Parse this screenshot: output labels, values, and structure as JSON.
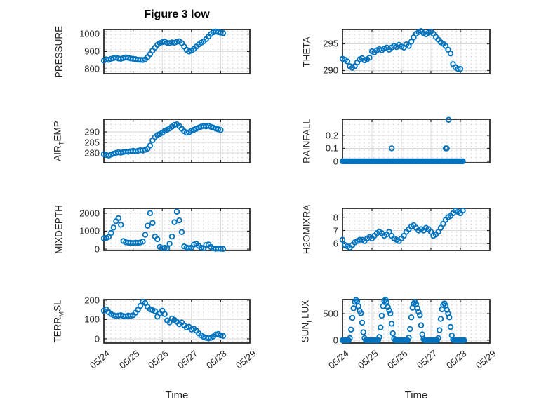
{
  "figure": {
    "title": "Figure 3 low",
    "xlabel": "Time",
    "marker_color": "#0072BD",
    "axis_color": "#262626",
    "border_color": "#1c1c1c",
    "grid_color": "#dadada",
    "minor_grid_color": "#c9c9c9",
    "background": "#ffffff",
    "xticks": [
      0,
      1,
      2,
      3,
      4,
      5
    ],
    "x_tick_labels": [
      "05/24",
      "05/25",
      "05/26",
      "05/27",
      "05/28",
      "05/29"
    ]
  },
  "chart_data": [
    {
      "type": "scatter",
      "name": "PRESSURE",
      "row": 0,
      "col": 0,
      "ylabel": {
        "pre": "PRESSURE",
        "sub": "",
        "post": ""
      },
      "yticks": [
        800,
        900,
        1000
      ],
      "ylim": [
        773,
        1026
      ],
      "xlim_days": [
        0,
        5
      ],
      "t0": 0,
      "dt": 0.0833333,
      "values": [
        848,
        855,
        852,
        858,
        862,
        865,
        860,
        858,
        862,
        866,
        864,
        860,
        858,
        856,
        853,
        852,
        851,
        855,
        868,
        885,
        905,
        922,
        938,
        948,
        953,
        956,
        950,
        948,
        952,
        950,
        955,
        958,
        948,
        928,
        910,
        900,
        905,
        915,
        928,
        940,
        950,
        958,
        970,
        985,
        1000,
        1010,
        1014,
        1011,
        1008,
        1005
      ]
    },
    {
      "type": "scatter",
      "name": "THETA",
      "row": 0,
      "col": 1,
      "ylabel": {
        "pre": "THETA",
        "sub": "",
        "post": ""
      },
      "yticks": [
        290,
        295
      ],
      "ylim": [
        289.4,
        297.7
      ],
      "xlim_days": [
        0,
        5
      ],
      "t0": 0,
      "dt": 0.0833333,
      "values": [
        292.2,
        292.0,
        291.7,
        290.8,
        290.5,
        290.8,
        291.5,
        292.1,
        292.3,
        291.9,
        292.1,
        292.4,
        293.6,
        293.4,
        293.8,
        294.0,
        293.8,
        294.1,
        294.3,
        293.9,
        294.3,
        294.6,
        294.4,
        294.8,
        294.5,
        294.3,
        294.9,
        294.6,
        295.4,
        296.2,
        296.9,
        297.2,
        297.4,
        297.0,
        296.8,
        297.1,
        297.3,
        296.9,
        296.3,
        295.8,
        295.3,
        295.0,
        294.6,
        293.9,
        293.2,
        291.2,
        290.6,
        290.3,
        290.3
      ]
    },
    {
      "type": "scatter",
      "name": "AIR_TEMP",
      "row": 1,
      "col": 0,
      "ylabel": {
        "pre": "AIR",
        "sub": "T",
        "post": "EMP"
      },
      "yticks": [
        280,
        285,
        290
      ],
      "ylim": [
        275.3,
        296.0
      ],
      "xlim_days": [
        0,
        5
      ],
      "t0": 0,
      "dt": 0.0833333,
      "values": [
        279.4,
        279.0,
        278.7,
        279.2,
        279.6,
        280.0,
        280.3,
        280.1,
        280.4,
        280.6,
        280.5,
        280.8,
        281.0,
        280.7,
        281.0,
        281.3,
        281.1,
        281.5,
        282.0,
        283.5,
        286.0,
        287.5,
        288.5,
        289.0,
        289.6,
        290.5,
        291.0,
        291.6,
        292.5,
        293.3,
        293.6,
        292.8,
        291.5,
        290.3,
        289.6,
        289.8,
        290.5,
        291.0,
        291.5,
        292.0,
        292.5,
        292.8,
        292.6,
        292.9,
        292.4,
        292.0,
        291.6,
        291.2,
        290.9
      ]
    },
    {
      "type": "scatter",
      "name": "RAINFALL",
      "row": 1,
      "col": 1,
      "ylabel": {
        "pre": "RAINFALL",
        "sub": "",
        "post": ""
      },
      "yticks": [
        0,
        0.1,
        0.2
      ],
      "ylim": [
        -0.011,
        0.324
      ],
      "xlim_days": [
        0,
        5
      ],
      "zero_run": {
        "t0": 0,
        "t1": 4.12,
        "dt": 0.0416667
      },
      "spikes": [
        {
          "t": 1.67,
          "v": 0.1
        },
        {
          "t": 3.5,
          "v": 0.1
        },
        {
          "t": 3.54,
          "v": 0.1
        },
        {
          "t": 3.6,
          "v": 0.32
        }
      ]
    },
    {
      "type": "scatter",
      "name": "MIXDEPTH",
      "row": 2,
      "col": 0,
      "ylabel": {
        "pre": "MIXDEPTH",
        "sub": "",
        "post": ""
      },
      "yticks": [
        0,
        1000,
        2000
      ],
      "ylim": [
        -75,
        2265
      ],
      "xlim_days": [
        0,
        5
      ],
      "t0": 0,
      "dt": 0.0833333,
      "values": [
        600,
        620,
        680,
        900,
        1200,
        1550,
        1720,
        1350,
        450,
        380,
        360,
        350,
        340,
        360,
        350,
        370,
        420,
        800,
        1300,
        2000,
        1450,
        700,
        550,
        120,
        60,
        80,
        50,
        300,
        700,
        1500,
        2080,
        1600,
        950,
        150,
        90,
        60,
        80,
        250,
        300,
        180,
        80,
        50,
        230,
        260,
        120,
        40,
        20,
        30,
        20,
        10
      ]
    },
    {
      "type": "scatter",
      "name": "H2OMIXRA",
      "row": 2,
      "col": 1,
      "ylabel": {
        "pre": "H2OMIXRA",
        "sub": "",
        "post": ""
      },
      "yticks": [
        6,
        7,
        8
      ],
      "ylim": [
        5.49,
        8.67
      ],
      "xlim_days": [
        0,
        5
      ],
      "t0": 0,
      "dt": 0.0833333,
      "values": [
        6.3,
        5.9,
        5.8,
        5.7,
        5.9,
        6.1,
        6.2,
        6.3,
        6.3,
        6.2,
        6.4,
        6.5,
        6.4,
        6.6,
        6.8,
        6.9,
        6.8,
        6.6,
        6.7,
        6.9,
        6.6,
        6.4,
        6.3,
        6.2,
        6.4,
        6.6,
        6.9,
        7.1,
        7.3,
        7.4,
        7.2,
        7.0,
        7.1,
        7.0,
        7.2,
        7.1,
        6.9,
        6.6,
        6.7,
        6.9,
        7.2,
        7.5,
        7.8,
        8.0,
        8.1,
        8.3,
        8.5,
        8.4,
        8.3,
        8.5
      ]
    },
    {
      "type": "scatter",
      "name": "TERR_MSL",
      "row": 3,
      "col": 0,
      "ylabel": {
        "pre": "TERR",
        "sub": "M",
        "post": "SL"
      },
      "yticks": [
        0,
        100,
        200
      ],
      "ylim": [
        -22,
        203
      ],
      "xlim_days": [
        0,
        5
      ],
      "t0": 0,
      "dt": 0.0833333,
      "values": [
        145,
        152,
        138,
        128,
        122,
        118,
        120,
        122,
        118,
        116,
        120,
        118,
        122,
        135,
        150,
        170,
        192,
        185,
        165,
        152,
        148,
        143,
        115,
        132,
        145,
        128,
        95,
        85,
        105,
        98,
        88,
        76,
        85,
        70,
        58,
        62,
        48,
        52,
        42,
        28,
        18,
        10,
        5,
        2,
        5,
        12,
        22,
        25,
        18,
        15
      ]
    },
    {
      "type": "scatter",
      "name": "SUN_FLUX",
      "row": 3,
      "col": 1,
      "ylabel": {
        "pre": "SUN",
        "sub": "F",
        "post": "LUX"
      },
      "yticks": [
        0,
        500
      ],
      "ylim": [
        -53,
        763
      ],
      "xlim_days": [
        0,
        5
      ],
      "t0": 0,
      "dt": 0.0416667,
      "values": [
        0,
        0,
        0,
        0,
        0,
        0,
        40,
        200,
        420,
        600,
        720,
        755,
        730,
        640,
        550,
        505,
        330,
        150,
        40,
        0,
        0,
        0,
        0,
        0,
        0,
        0,
        0,
        0,
        0,
        0,
        60,
        240,
        460,
        640,
        740,
        760,
        720,
        620,
        560,
        500,
        310,
        130,
        30,
        0,
        0,
        0,
        0,
        0,
        0,
        0,
        0,
        0,
        0,
        0,
        50,
        210,
        430,
        610,
        690,
        715,
        680,
        600,
        530,
        470,
        280,
        110,
        20,
        0,
        0,
        0,
        0,
        0,
        0,
        0,
        0,
        0,
        0,
        0,
        40,
        190,
        400,
        580,
        660,
        690,
        650,
        570,
        500,
        430,
        250,
        90,
        15,
        0,
        0,
        0,
        0,
        0,
        0,
        0,
        0,
        0
      ]
    }
  ]
}
